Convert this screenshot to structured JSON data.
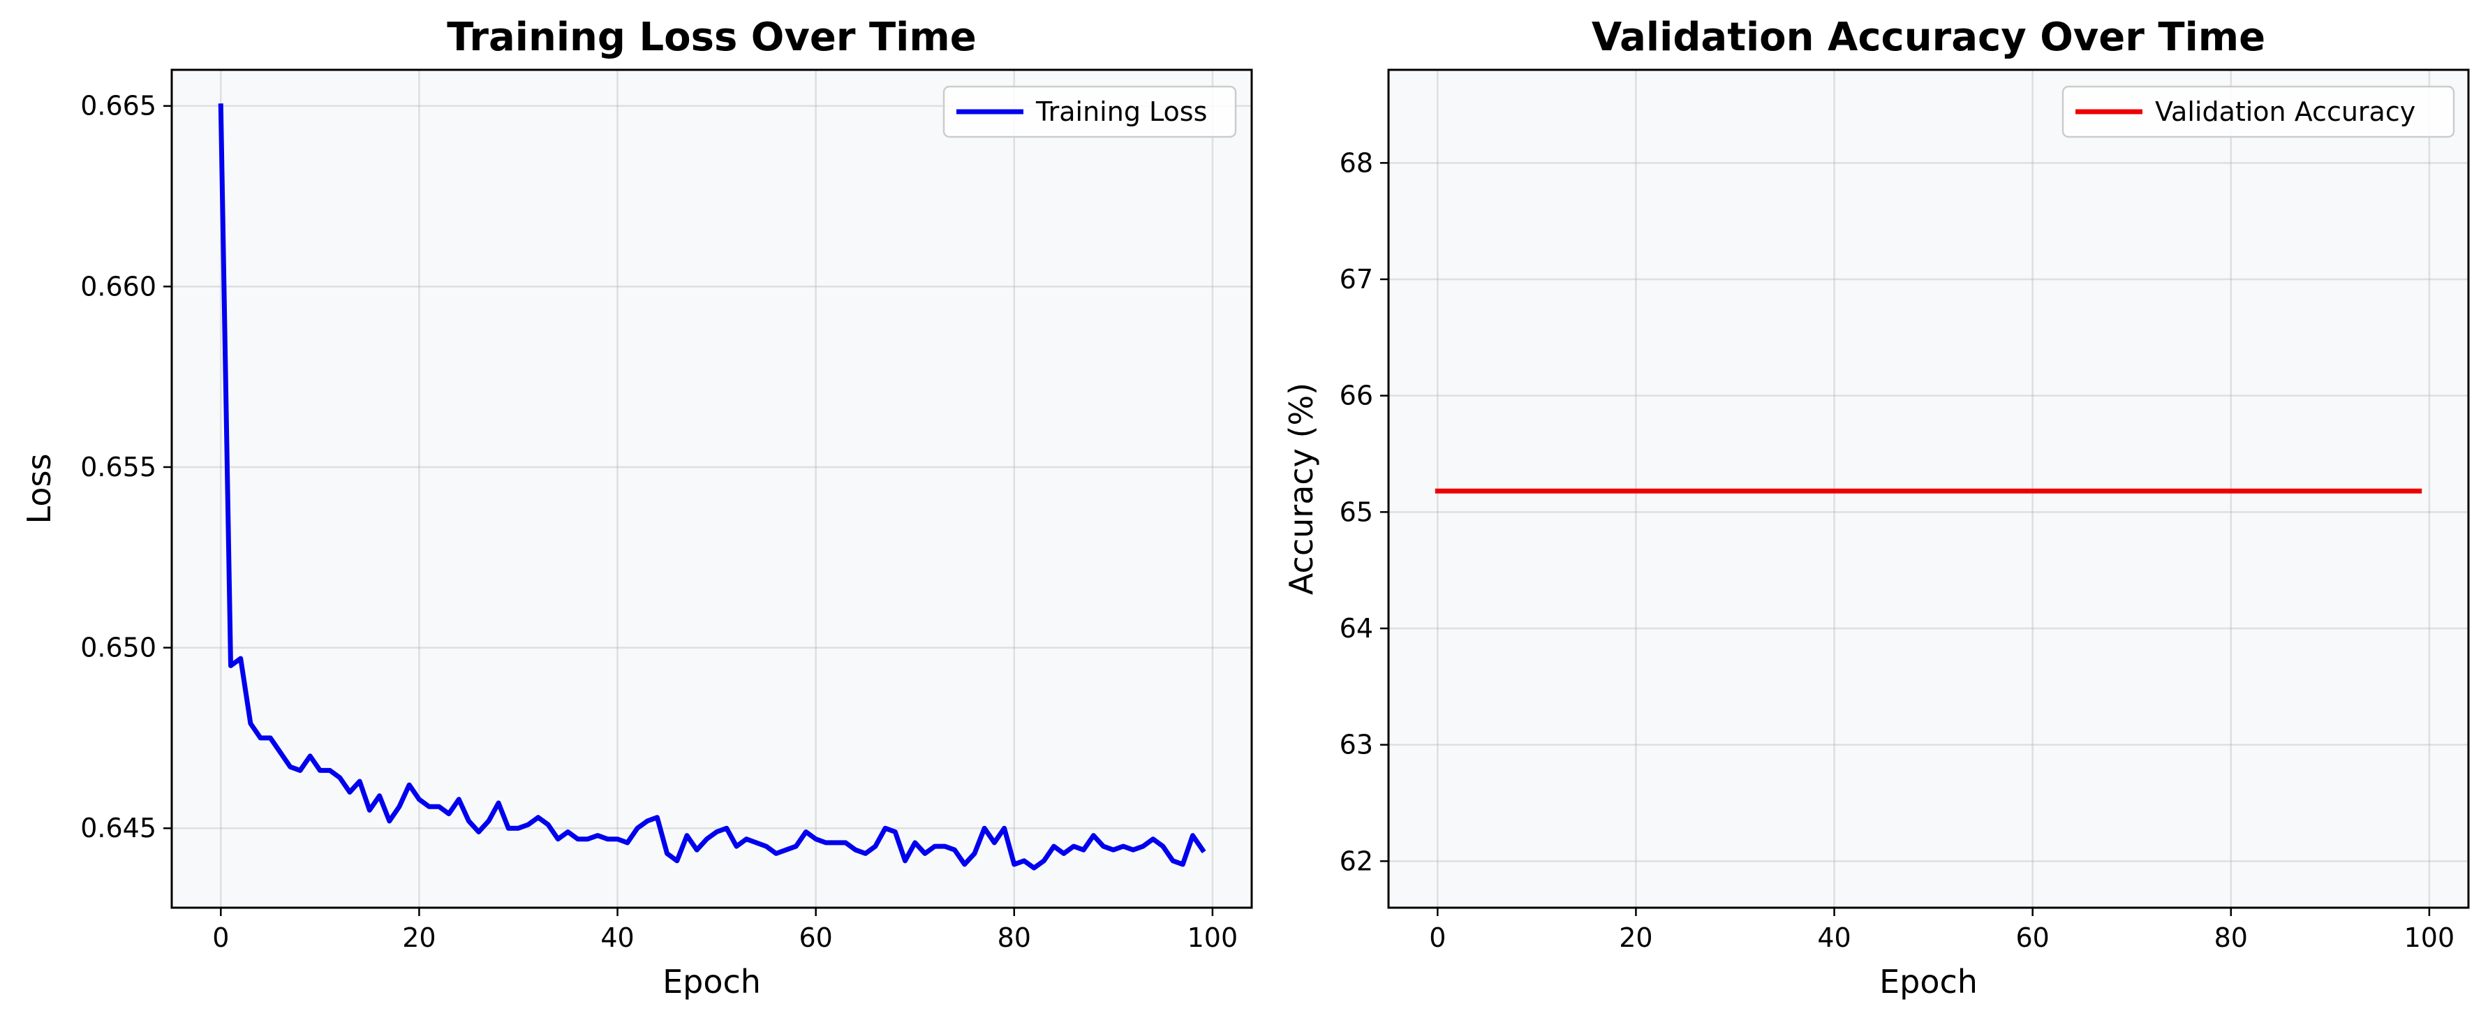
{
  "chart_data": [
    {
      "type": "line",
      "title": "Training Loss Over Time",
      "xlabel": "Epoch",
      "ylabel": "Loss",
      "xlim": [
        -4.95,
        103.95
      ],
      "ylim": [
        0.6428,
        0.666
      ],
      "xticks": [
        0,
        20,
        40,
        60,
        80,
        100
      ],
      "xtick_labels": [
        "0",
        "20",
        "40",
        "60",
        "80",
        "100"
      ],
      "yticks": [
        0.645,
        0.65,
        0.655,
        0.66,
        0.665
      ],
      "ytick_labels": [
        "0.645",
        "0.650",
        "0.655",
        "0.660",
        "0.665"
      ],
      "grid": true,
      "legend_position": "top-right",
      "series": [
        {
          "name": "Training Loss",
          "color": "#0000ee",
          "x": [
            0,
            1,
            2,
            3,
            4,
            5,
            6,
            7,
            8,
            9,
            10,
            11,
            12,
            13,
            14,
            15,
            16,
            17,
            18,
            19,
            20,
            21,
            22,
            23,
            24,
            25,
            26,
            27,
            28,
            29,
            30,
            31,
            32,
            33,
            34,
            35,
            36,
            37,
            38,
            39,
            40,
            41,
            42,
            43,
            44,
            45,
            46,
            47,
            48,
            49,
            50,
            51,
            52,
            53,
            54,
            55,
            56,
            57,
            58,
            59,
            60,
            61,
            62,
            63,
            64,
            65,
            66,
            67,
            68,
            69,
            70,
            71,
            72,
            73,
            74,
            75,
            76,
            77,
            78,
            79,
            80,
            81,
            82,
            83,
            84,
            85,
            86,
            87,
            88,
            89,
            90,
            91,
            92,
            93,
            94,
            95,
            96,
            97,
            98,
            99
          ],
          "values": [
            0.665,
            0.6495,
            0.6497,
            0.6479,
            0.6475,
            0.6475,
            0.6471,
            0.6467,
            0.6466,
            0.647,
            0.6466,
            0.6466,
            0.6464,
            0.646,
            0.6463,
            0.6455,
            0.6459,
            0.6452,
            0.6456,
            0.6462,
            0.6458,
            0.6456,
            0.6456,
            0.6454,
            0.6458,
            0.6452,
            0.6449,
            0.6452,
            0.6457,
            0.645,
            0.645,
            0.6451,
            0.6453,
            0.6451,
            0.6447,
            0.6449,
            0.6447,
            0.6447,
            0.6448,
            0.6447,
            0.6447,
            0.6446,
            0.645,
            0.6452,
            0.6453,
            0.6443,
            0.6441,
            0.6448,
            0.6444,
            0.6447,
            0.6449,
            0.645,
            0.6445,
            0.6447,
            0.6446,
            0.6445,
            0.6443,
            0.6444,
            0.6445,
            0.6449,
            0.6447,
            0.6446,
            0.6446,
            0.6446,
            0.6444,
            0.6443,
            0.6445,
            0.645,
            0.6449,
            0.6441,
            0.6446,
            0.6443,
            0.6445,
            0.6445,
            0.6444,
            0.644,
            0.6443,
            0.645,
            0.6446,
            0.645,
            0.644,
            0.6441,
            0.6439,
            0.6441,
            0.6445,
            0.6443,
            0.6445,
            0.6444,
            0.6448,
            0.6445,
            0.6444,
            0.6445,
            0.6444,
            0.6445,
            0.6447,
            0.6445,
            0.6441,
            0.644,
            0.6448,
            0.6444
          ]
        }
      ]
    },
    {
      "type": "line",
      "title": "Validation Accuracy Over Time",
      "xlabel": "Epoch",
      "ylabel": "Accuracy (%)",
      "xlim": [
        -4.95,
        103.95
      ],
      "ylim": [
        61.6,
        68.8
      ],
      "xticks": [
        0,
        20,
        40,
        60,
        80,
        100
      ],
      "xtick_labels": [
        "0",
        "20",
        "40",
        "60",
        "80",
        "100"
      ],
      "yticks": [
        62,
        63,
        64,
        65,
        66,
        67,
        68
      ],
      "ytick_labels": [
        "62",
        "63",
        "64",
        "65",
        "66",
        "67",
        "68"
      ],
      "grid": true,
      "legend_position": "top-right",
      "series": [
        {
          "name": "Validation Accuracy",
          "color": "#ee0000",
          "x": [
            0,
            99
          ],
          "values": [
            65.18,
            65.18
          ]
        }
      ]
    }
  ]
}
